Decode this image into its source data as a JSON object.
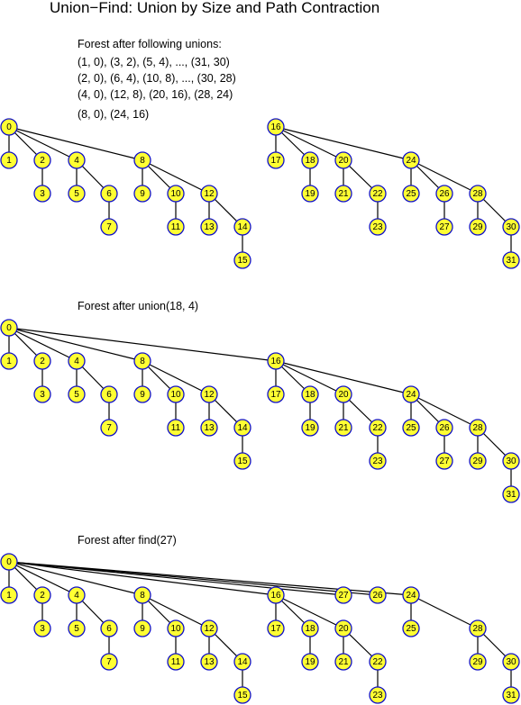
{
  "title": "Union−Find: Union by Size and Path Contraction",
  "node_style": {
    "fill": "#ffff33",
    "stroke": "#1010c8",
    "edge": "#000000"
  },
  "panels": [
    {
      "caption_lines": [
        "Forest after following unions:",
        "(1, 0), (3, 2), (5, 4), ..., (31, 30)",
        "(2, 0), (6, 4), (10, 8), ..., (30, 28)",
        "(4, 0), (12, 8), (20, 16), (28, 24)",
        "(8, 0), (24, 16)"
      ],
      "edges": [
        [
          0,
          1
        ],
        [
          0,
          2
        ],
        [
          0,
          4
        ],
        [
          0,
          8
        ],
        [
          2,
          3
        ],
        [
          4,
          5
        ],
        [
          4,
          6
        ],
        [
          6,
          7
        ],
        [
          8,
          9
        ],
        [
          8,
          10
        ],
        [
          8,
          12
        ],
        [
          10,
          11
        ],
        [
          12,
          13
        ],
        [
          12,
          14
        ],
        [
          14,
          15
        ],
        [
          16,
          17
        ],
        [
          16,
          18
        ],
        [
          16,
          20
        ],
        [
          16,
          24
        ],
        [
          18,
          19
        ],
        [
          20,
          21
        ],
        [
          20,
          22
        ],
        [
          22,
          23
        ],
        [
          24,
          25
        ],
        [
          24,
          26
        ],
        [
          24,
          28
        ],
        [
          26,
          27
        ],
        [
          28,
          29
        ],
        [
          28,
          30
        ],
        [
          30,
          31
        ]
      ]
    },
    {
      "caption_lines": [
        "Forest after union(18, 4)"
      ],
      "edges": [
        [
          0,
          1
        ],
        [
          0,
          2
        ],
        [
          0,
          4
        ],
        [
          0,
          8
        ],
        [
          0,
          16
        ],
        [
          2,
          3
        ],
        [
          4,
          5
        ],
        [
          4,
          6
        ],
        [
          6,
          7
        ],
        [
          8,
          9
        ],
        [
          8,
          10
        ],
        [
          8,
          12
        ],
        [
          10,
          11
        ],
        [
          12,
          13
        ],
        [
          12,
          14
        ],
        [
          14,
          15
        ],
        [
          16,
          17
        ],
        [
          16,
          18
        ],
        [
          16,
          20
        ],
        [
          16,
          24
        ],
        [
          18,
          19
        ],
        [
          20,
          21
        ],
        [
          20,
          22
        ],
        [
          22,
          23
        ],
        [
          24,
          25
        ],
        [
          24,
          26
        ],
        [
          24,
          28
        ],
        [
          26,
          27
        ],
        [
          28,
          29
        ],
        [
          28,
          30
        ],
        [
          30,
          31
        ]
      ]
    },
    {
      "caption_lines": [
        "Forest after find(27)"
      ],
      "edges": [
        [
          0,
          1
        ],
        [
          0,
          2
        ],
        [
          0,
          4
        ],
        [
          0,
          8
        ],
        [
          0,
          16
        ],
        [
          0,
          24
        ],
        [
          0,
          26
        ],
        [
          0,
          27
        ],
        [
          2,
          3
        ],
        [
          4,
          5
        ],
        [
          4,
          6
        ],
        [
          6,
          7
        ],
        [
          8,
          9
        ],
        [
          8,
          10
        ],
        [
          8,
          12
        ],
        [
          10,
          11
        ],
        [
          12,
          13
        ],
        [
          12,
          14
        ],
        [
          14,
          15
        ],
        [
          16,
          17
        ],
        [
          16,
          18
        ],
        [
          16,
          20
        ],
        [
          18,
          19
        ],
        [
          20,
          21
        ],
        [
          20,
          22
        ],
        [
          22,
          23
        ],
        [
          24,
          25
        ],
        [
          24,
          28
        ],
        [
          28,
          29
        ],
        [
          28,
          30
        ],
        [
          30,
          31
        ]
      ]
    }
  ]
}
